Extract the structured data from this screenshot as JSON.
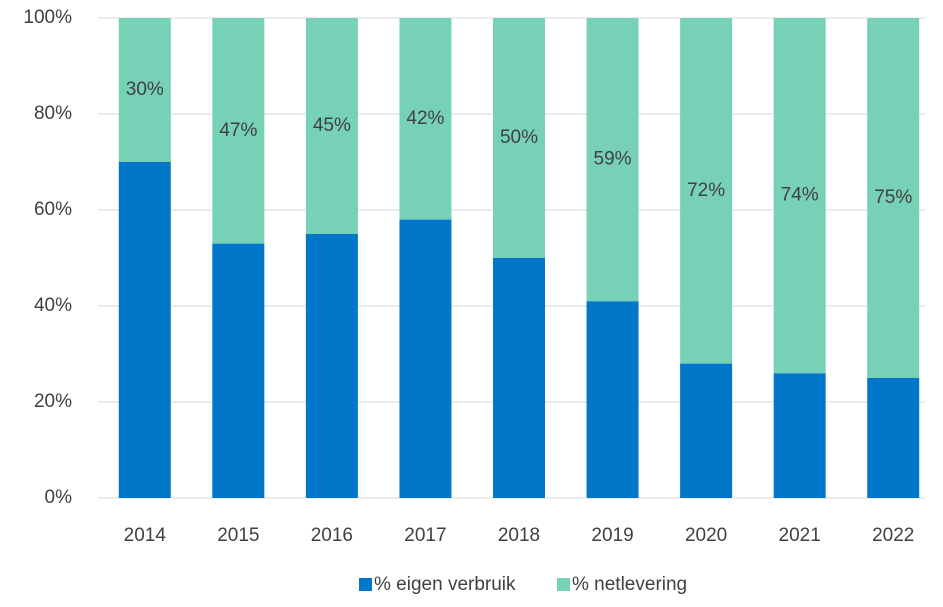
{
  "chart_data": {
    "type": "stacked_bar",
    "categories": [
      "2014",
      "2015",
      "2016",
      "2017",
      "2018",
      "2019",
      "2020",
      "2021",
      "2022"
    ],
    "series": [
      {
        "name": "% eigen verbruik",
        "color": "#0077c8",
        "values": [
          70,
          53,
          55,
          58,
          50,
          41,
          28,
          26,
          25
        ]
      },
      {
        "name": "% netlevering",
        "color": "#76d1b6",
        "values": [
          30,
          47,
          45,
          42,
          50,
          59,
          72,
          74,
          75
        ],
        "value_labels": [
          "30%",
          "47%",
          "45%",
          "42%",
          "50%",
          "59%",
          "72%",
          "74%",
          "75%"
        ]
      }
    ],
    "ylim": [
      0,
      100
    ],
    "yticks": [
      {
        "value": 0,
        "label": "0%"
      },
      {
        "value": 20,
        "label": "20%"
      },
      {
        "value": 40,
        "label": "40%"
      },
      {
        "value": 60,
        "label": "60%"
      },
      {
        "value": 80,
        "label": "80%"
      },
      {
        "value": 100,
        "label": "100%"
      }
    ],
    "grid": true,
    "legend": "bottom"
  }
}
